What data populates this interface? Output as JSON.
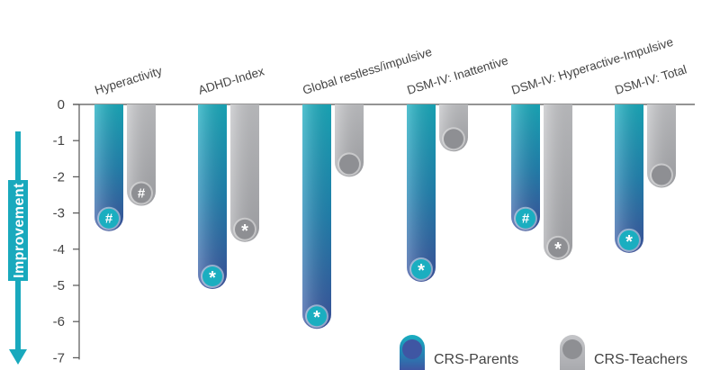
{
  "chart_data": {
    "type": "bar",
    "categories": [
      "Hyperactivity",
      "ADHD-Index",
      "Global restless/impulsive",
      "DSM-IV: Inattentive",
      "DSM-IV: Hyperactive-Impulsive",
      "DSM-IV: Total"
    ],
    "series": [
      {
        "name": "CRS-Parents",
        "values": [
          -3.5,
          -5.1,
          -6.2,
          -4.9,
          -3.5,
          -4.1
        ],
        "markers": [
          "#",
          "*",
          "*",
          "*",
          "#",
          "*"
        ]
      },
      {
        "name": "CRS-Teachers",
        "values": [
          -2.8,
          -3.8,
          -2.0,
          -1.3,
          -4.3,
          -2.3
        ],
        "markers": [
          "#",
          "*",
          "",
          "",
          "*",
          ""
        ]
      }
    ],
    "ylabel": "Improvement",
    "ylim": [
      -7,
      0
    ],
    "yticks": [
      0,
      -1,
      -2,
      -3,
      -4,
      -5,
      -6,
      -7
    ],
    "legend_position": "bottom-right",
    "colors": {
      "parents": "#1aaec0",
      "parents_dark": "#3f56a3",
      "teachers": "#b9babd",
      "teachers_dark": "#8e8f93",
      "axis": "#555555",
      "arrow": "#19a9bd"
    }
  }
}
